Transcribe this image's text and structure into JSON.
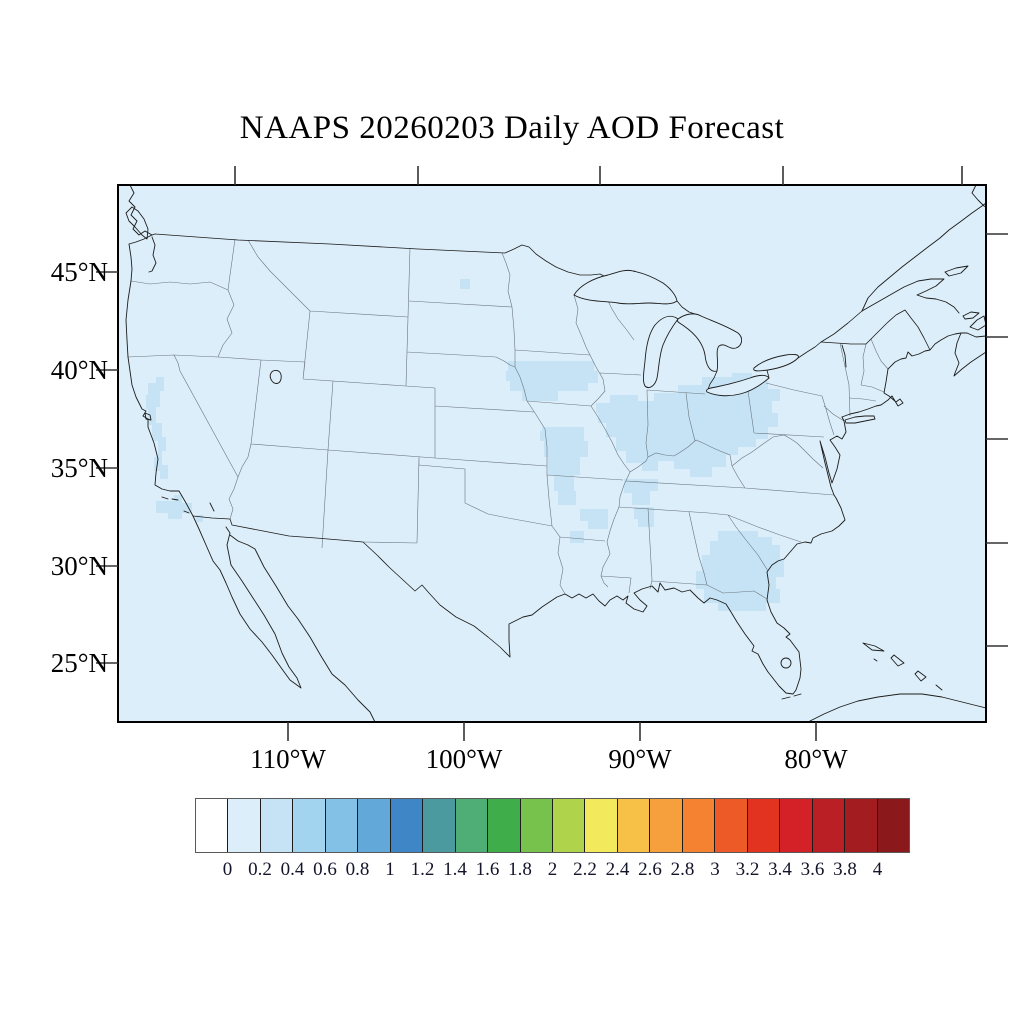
{
  "title": "NAAPS 20260203 Daily AOD Forecast",
  "map": {
    "lat_tick_labels": [
      "45°N",
      "40°N",
      "35°N",
      "30°N",
      "25°N"
    ],
    "lon_tick_labels": [
      "110°W",
      "100°W",
      "90°W",
      "80°W"
    ],
    "background_land_sea_color": "#dceef9",
    "aod_patch_color": "#c6e3f5",
    "coastline_color": "#1c1c1c",
    "state_border_color": "#6a7580",
    "frame_color": "#000000",
    "aod_overlay_regions": [
      "central-california-valley",
      "southern-california-coast",
      "central-north-dakota",
      "iowa",
      "eastern-missouri",
      "central-illinois",
      "indiana",
      "ohio-western-pennsylvania",
      "kentucky",
      "arkansas-tennessee",
      "southern-alabama-georgia-florida-panhandle"
    ]
  },
  "colorbar": {
    "tick_labels": [
      "0",
      "0.2",
      "0.4",
      "0.6",
      "0.8",
      "1",
      "1.2",
      "1.4",
      "1.6",
      "1.8",
      "2",
      "2.2",
      "2.4",
      "2.6",
      "2.8",
      "3",
      "3.2",
      "3.4",
      "3.6",
      "3.8",
      "4"
    ],
    "cell_colors": [
      "#ffffff",
      "#dceef9",
      "#c6e3f5",
      "#a2d4ef",
      "#83c1e6",
      "#62a8d9",
      "#3f86c6",
      "#4b9aa0",
      "#4fae76",
      "#3ead4a",
      "#77c14d",
      "#afd34a",
      "#f3e95d",
      "#f7c148",
      "#f6a03d",
      "#f58231",
      "#ed5a28",
      "#e23320",
      "#d42027",
      "#bb1f26",
      "#a31c20",
      "#8b191b"
    ],
    "value_min": "0",
    "value_max": "4"
  }
}
